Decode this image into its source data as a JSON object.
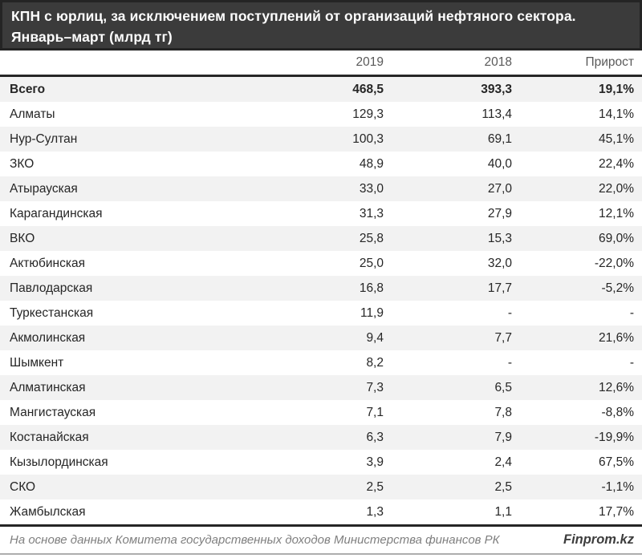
{
  "title": {
    "line1": "КПН с юрлиц, за исключением поступлений от организаций нефтяного сектора.",
    "line2": "Январь–март (млрд тг)"
  },
  "table": {
    "columns": [
      "",
      "2019",
      "2018",
      "Прирост"
    ],
    "rows": [
      {
        "name": "Всего",
        "v2019": "468,5",
        "v2018": "393,3",
        "growth": "19,1%",
        "bold": true
      },
      {
        "name": "Алматы",
        "v2019": "129,3",
        "v2018": "113,4",
        "growth": "14,1%",
        "bold": false
      },
      {
        "name": "Нур-Султан",
        "v2019": "100,3",
        "v2018": "69,1",
        "growth": "45,1%",
        "bold": false
      },
      {
        "name": "ЗКО",
        "v2019": "48,9",
        "v2018": "40,0",
        "growth": "22,4%",
        "bold": false
      },
      {
        "name": "Атырауская",
        "v2019": "33,0",
        "v2018": "27,0",
        "growth": "22,0%",
        "bold": false
      },
      {
        "name": "Карагандинская",
        "v2019": "31,3",
        "v2018": "27,9",
        "growth": "12,1%",
        "bold": false
      },
      {
        "name": "ВКО",
        "v2019": "25,8",
        "v2018": "15,3",
        "growth": "69,0%",
        "bold": false
      },
      {
        "name": "Актюбинская",
        "v2019": "25,0",
        "v2018": "32,0",
        "growth": "-22,0%",
        "bold": false
      },
      {
        "name": "Павлодарская",
        "v2019": "16,8",
        "v2018": "17,7",
        "growth": "-5,2%",
        "bold": false
      },
      {
        "name": "Туркестанская",
        "v2019": "11,9",
        "v2018": "-",
        "growth": "-",
        "bold": false
      },
      {
        "name": "Акмолинская",
        "v2019": "9,4",
        "v2018": "7,7",
        "growth": "21,6%",
        "bold": false
      },
      {
        "name": "Шымкент",
        "v2019": "8,2",
        "v2018": "-",
        "growth": "-",
        "bold": false
      },
      {
        "name": "Алматинская",
        "v2019": "7,3",
        "v2018": "6,5",
        "growth": "12,6%",
        "bold": false
      },
      {
        "name": "Мангистауская",
        "v2019": "7,1",
        "v2018": "7,8",
        "growth": "-8,8%",
        "bold": false
      },
      {
        "name": "Костанайская",
        "v2019": "6,3",
        "v2018": "7,9",
        "growth": "-19,9%",
        "bold": false
      },
      {
        "name": "Кызылординская",
        "v2019": "3,9",
        "v2018": "2,4",
        "growth": "67,5%",
        "bold": false
      },
      {
        "name": "СКО",
        "v2019": "2,5",
        "v2018": "2,5",
        "growth": "-1,1%",
        "bold": false
      },
      {
        "name": "Жамбылская",
        "v2019": "1,3",
        "v2018": "1,1",
        "growth": "17,7%",
        "bold": false
      }
    ]
  },
  "footer": {
    "source": "На основе данных Комитета государственных доходов Министерства финансов РК",
    "brand": "Finprom.kz"
  },
  "colors": {
    "title_bar_bg": "#3b3b3b",
    "title_bar_border": "#242424",
    "title_text": "#fdfdfd",
    "header_text": "#595959",
    "rule_dark": "#262626",
    "row_stripe": "#f2f2f2",
    "body_text": "#262626",
    "footer_text": "#7f7f7f",
    "bottom_rule": "#adadad"
  },
  "chart_data": {
    "type": "table",
    "title": "КПН с юрлиц, за исключением поступлений от организаций нефтяного сектора. Январь–март (млрд тг)",
    "columns": [
      "2019",
      "2018",
      "Прирост"
    ],
    "categories": [
      "Всего",
      "Алматы",
      "Нур-Султан",
      "ЗКО",
      "Атырауская",
      "Карагандинская",
      "ВКО",
      "Актюбинская",
      "Павлодарская",
      "Туркестанская",
      "Акмолинская",
      "Шымкент",
      "Алматинская",
      "Мангистауская",
      "Костанайская",
      "Кызылординская",
      "СКО",
      "Жамбылская"
    ],
    "series": [
      {
        "name": "2019",
        "unit": "млрд тг",
        "values": [
          468.5,
          129.3,
          100.3,
          48.9,
          33.0,
          31.3,
          25.8,
          25.0,
          16.8,
          11.9,
          9.4,
          8.2,
          7.3,
          7.1,
          6.3,
          3.9,
          2.5,
          1.3
        ]
      },
      {
        "name": "2018",
        "unit": "млрд тг",
        "values": [
          393.3,
          113.4,
          69.1,
          40.0,
          27.0,
          27.9,
          15.3,
          32.0,
          17.7,
          null,
          7.7,
          null,
          6.5,
          7.8,
          7.9,
          2.4,
          2.5,
          1.1
        ]
      },
      {
        "name": "Прирост",
        "unit": "%",
        "values": [
          19.1,
          14.1,
          45.1,
          22.4,
          22.0,
          12.1,
          69.0,
          -22.0,
          -5.2,
          null,
          21.6,
          null,
          12.6,
          -8.8,
          -19.9,
          67.5,
          -1.1,
          17.7
        ]
      }
    ]
  }
}
